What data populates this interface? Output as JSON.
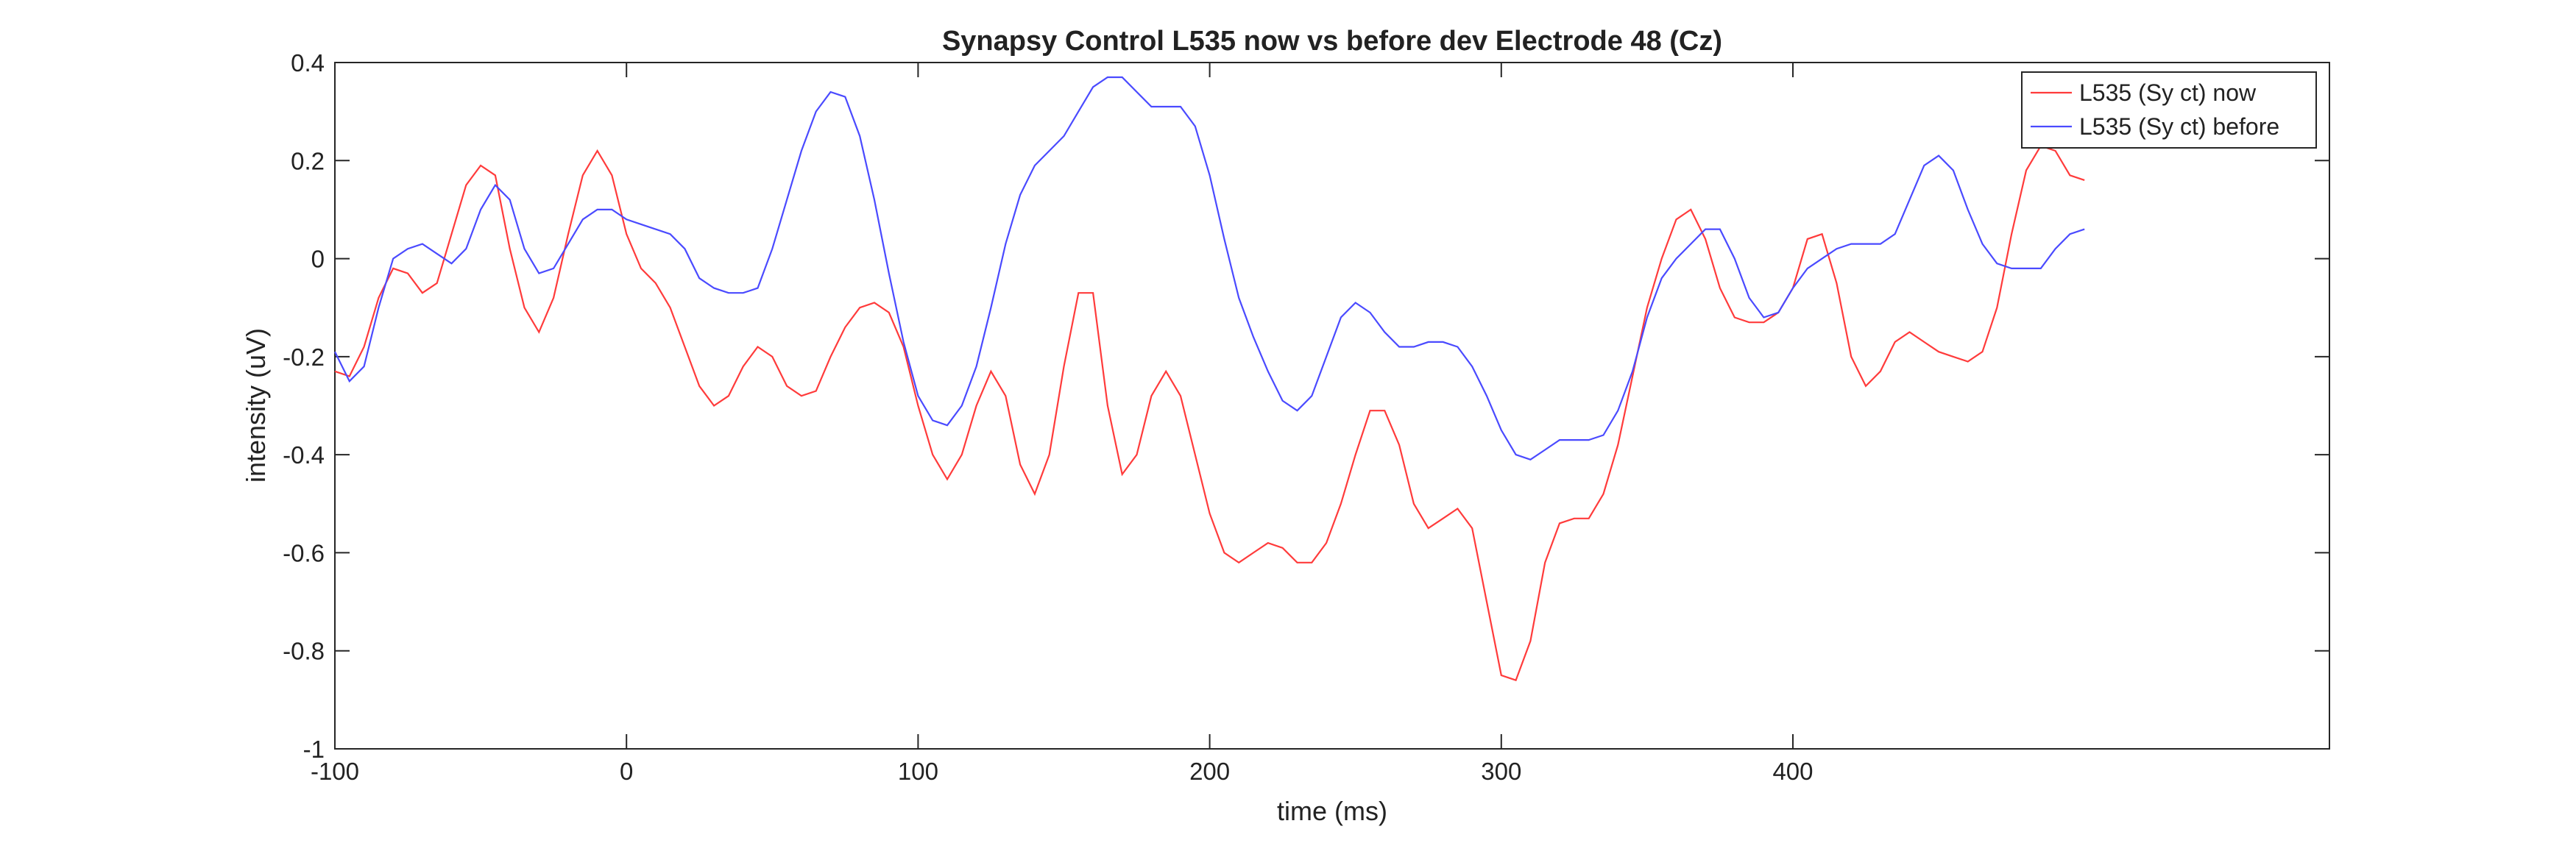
{
  "chart_data": {
    "type": "line",
    "title": "Synapsy Control L535 now vs before dev Electrode 48 (Cz)",
    "x_label": "time (ms)",
    "y_label": "intensity (uV)",
    "x": [
      -100,
      -95,
      -90,
      -85,
      -80,
      -75,
      -70,
      -65,
      -60,
      -55,
      -50,
      -45,
      -40,
      -35,
      -30,
      -25,
      -20,
      -15,
      -10,
      -5,
      0,
      5,
      10,
      15,
      20,
      25,
      30,
      35,
      40,
      45,
      50,
      55,
      60,
      65,
      70,
      75,
      80,
      85,
      90,
      95,
      100,
      105,
      110,
      115,
      120,
      125,
      130,
      135,
      140,
      145,
      150,
      155,
      160,
      165,
      170,
      175,
      180,
      185,
      190,
      195,
      200,
      205,
      210,
      215,
      220,
      225,
      230,
      235,
      240,
      245,
      250,
      255,
      260,
      265,
      270,
      275,
      280,
      285,
      290,
      295,
      300,
      305,
      310,
      315,
      320,
      325,
      330,
      335,
      340,
      345,
      350,
      355,
      360,
      365,
      370,
      375,
      380,
      385,
      390,
      395,
      400,
      405,
      410,
      415,
      420,
      425,
      430,
      435,
      440,
      445,
      450,
      455,
      460,
      465,
      470,
      475,
      480,
      485,
      490,
      495,
      500
    ],
    "series": [
      {
        "name": "L535 (Sy ct) now",
        "color": "#ff3b3b",
        "values": [
          -0.23,
          -0.24,
          -0.18,
          -0.08,
          -0.02,
          -0.03,
          -0.07,
          -0.05,
          0.05,
          0.15,
          0.19,
          0.17,
          0.02,
          -0.1,
          -0.15,
          -0.08,
          0.05,
          0.17,
          0.22,
          0.17,
          0.05,
          -0.02,
          -0.05,
          -0.1,
          -0.18,
          -0.26,
          -0.3,
          -0.28,
          -0.22,
          -0.18,
          -0.2,
          -0.26,
          -0.28,
          -0.27,
          -0.2,
          -0.14,
          -0.1,
          -0.09,
          -0.11,
          -0.18,
          -0.3,
          -0.4,
          -0.45,
          -0.4,
          -0.3,
          -0.23,
          -0.28,
          -0.42,
          -0.48,
          -0.4,
          -0.22,
          -0.07,
          -0.07,
          -0.3,
          -0.44,
          -0.4,
          -0.28,
          -0.23,
          -0.28,
          -0.4,
          -0.52,
          -0.6,
          -0.62,
          -0.6,
          -0.58,
          -0.59,
          -0.62,
          -0.62,
          -0.58,
          -0.5,
          -0.4,
          -0.31,
          -0.31,
          -0.38,
          -0.5,
          -0.55,
          -0.53,
          -0.51,
          -0.55,
          -0.7,
          -0.85,
          -0.86,
          -0.78,
          -0.62,
          -0.54,
          -0.53,
          -0.53,
          -0.48,
          -0.38,
          -0.24,
          -0.1,
          0.0,
          0.08,
          0.1,
          0.04,
          -0.06,
          -0.12,
          -0.13,
          -0.13,
          -0.11,
          -0.06,
          0.04,
          0.05,
          -0.05,
          -0.2,
          -0.26,
          -0.23,
          -0.17,
          -0.15,
          -0.17,
          -0.19,
          -0.2,
          -0.21,
          -0.19,
          -0.1,
          0.05,
          0.18,
          0.23,
          0.22,
          0.17,
          0.16
        ]
      },
      {
        "name": "L535 (Sy ct) before",
        "color": "#4a4aff",
        "values": [
          -0.19,
          -0.25,
          -0.22,
          -0.1,
          0.0,
          0.02,
          0.03,
          0.01,
          -0.01,
          0.02,
          0.1,
          0.15,
          0.12,
          0.02,
          -0.03,
          -0.02,
          0.03,
          0.08,
          0.1,
          0.1,
          0.08,
          0.07,
          0.06,
          0.05,
          0.02,
          -0.04,
          -0.06,
          -0.07,
          -0.07,
          -0.06,
          0.02,
          0.12,
          0.22,
          0.3,
          0.34,
          0.33,
          0.25,
          0.12,
          -0.03,
          -0.17,
          -0.28,
          -0.33,
          -0.34,
          -0.3,
          -0.22,
          -0.1,
          0.03,
          0.13,
          0.19,
          0.22,
          0.25,
          0.3,
          0.35,
          0.37,
          0.37,
          0.34,
          0.31,
          0.31,
          0.31,
          0.27,
          0.17,
          0.04,
          -0.08,
          -0.16,
          -0.23,
          -0.29,
          -0.31,
          -0.28,
          -0.2,
          -0.12,
          -0.09,
          -0.11,
          -0.15,
          -0.18,
          -0.18,
          -0.17,
          -0.17,
          -0.18,
          -0.22,
          -0.28,
          -0.35,
          -0.4,
          -0.41,
          -0.39,
          -0.37,
          -0.37,
          -0.37,
          -0.36,
          -0.31,
          -0.23,
          -0.12,
          -0.04,
          0.0,
          0.03,
          0.06,
          0.06,
          0.0,
          -0.08,
          -0.12,
          -0.11,
          -0.06,
          -0.02,
          0.0,
          0.02,
          0.03,
          0.03,
          0.03,
          0.05,
          0.12,
          0.19,
          0.21,
          0.18,
          0.1,
          0.03,
          -0.01,
          -0.02,
          -0.02,
          -0.02,
          0.02,
          0.05,
          0.06
        ]
      }
    ],
    "xlim": [
      -100,
      584
    ],
    "xticks": [
      -100,
      0,
      100,
      200,
      300,
      400
    ],
    "ylim": [
      -1,
      0.4
    ],
    "yticks": [
      -1,
      -0.8,
      -0.6,
      -0.4,
      -0.2,
      0,
      0.2,
      0.4
    ],
    "legend": "upper right"
  }
}
